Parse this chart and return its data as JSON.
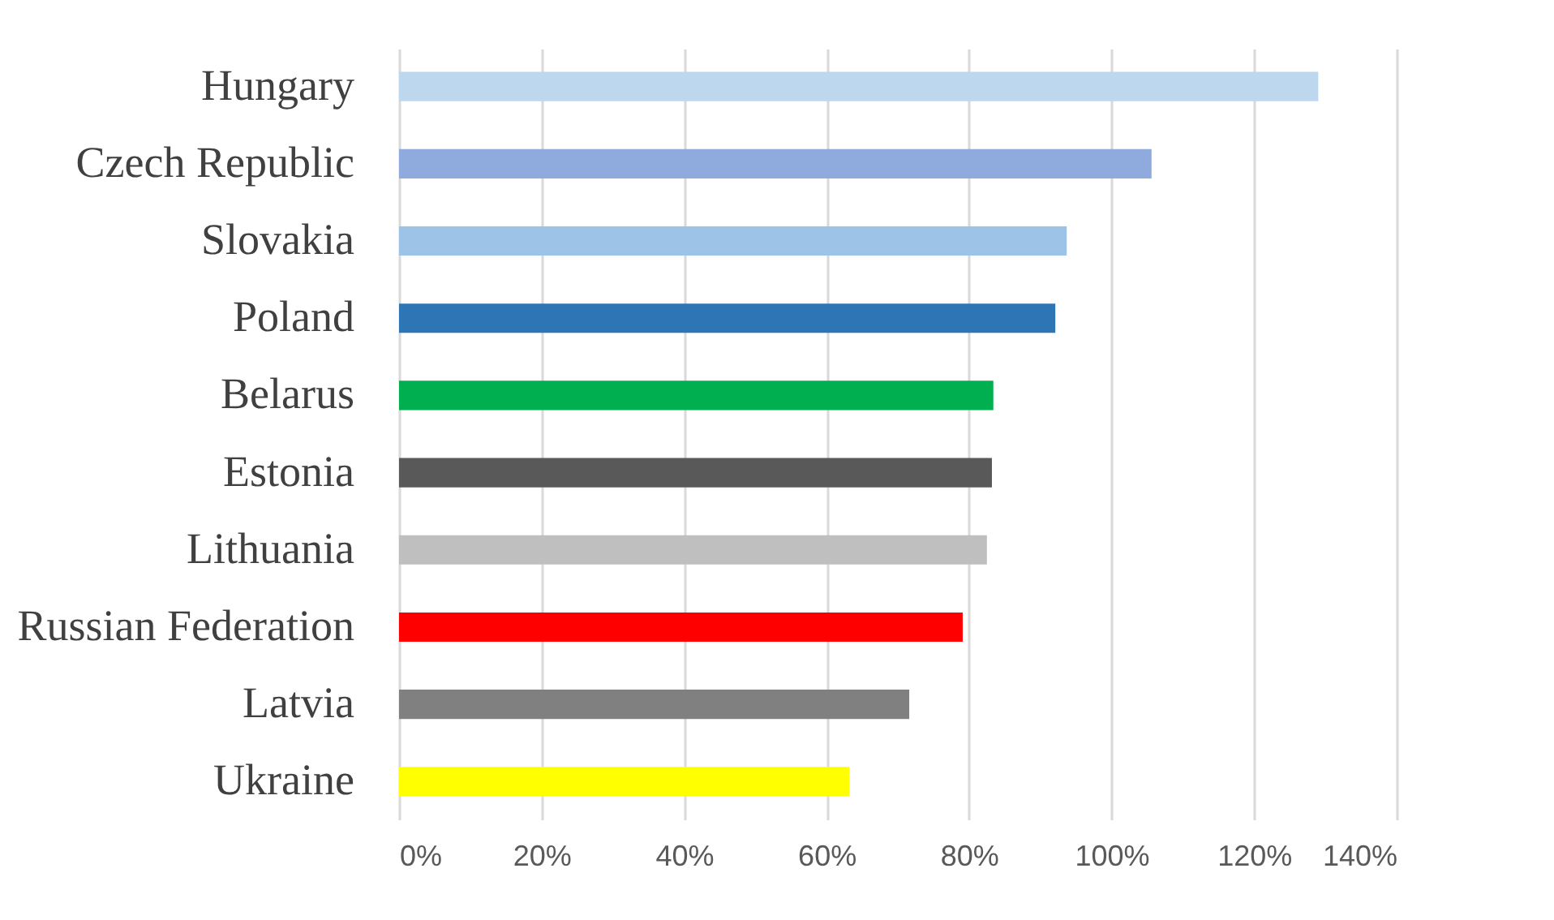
{
  "chart_data": {
    "type": "bar",
    "orientation": "horizontal",
    "categories": [
      "Hungary",
      "Czech Republic",
      "Slovakia",
      "Poland",
      "Belarus",
      "Estonia",
      "Lithuania",
      "Russian Federation",
      "Latvia",
      "Ukraine"
    ],
    "values": [
      129,
      105.6,
      93.7,
      92.1,
      83.4,
      83.2,
      82.5,
      79.1,
      71.6,
      63.2
    ],
    "colors": [
      "#bdd7ee",
      "#8faadc",
      "#9dc3e6",
      "#2e75b6",
      "#00b050",
      "#595959",
      "#bfbfbf",
      "#ff0000",
      "#808080",
      "#ffff00"
    ],
    "xlim": [
      0,
      140
    ],
    "xticks": [
      {
        "value": 0,
        "label": "0%"
      },
      {
        "value": 20,
        "label": "20%"
      },
      {
        "value": 40,
        "label": "40%"
      },
      {
        "value": 60,
        "label": "60%"
      },
      {
        "value": 80,
        "label": "80%"
      },
      {
        "value": 100,
        "label": "100%"
      },
      {
        "value": 120,
        "label": "120%"
      },
      {
        "value": 140,
        "label": "140%"
      }
    ],
    "grid": "x"
  }
}
